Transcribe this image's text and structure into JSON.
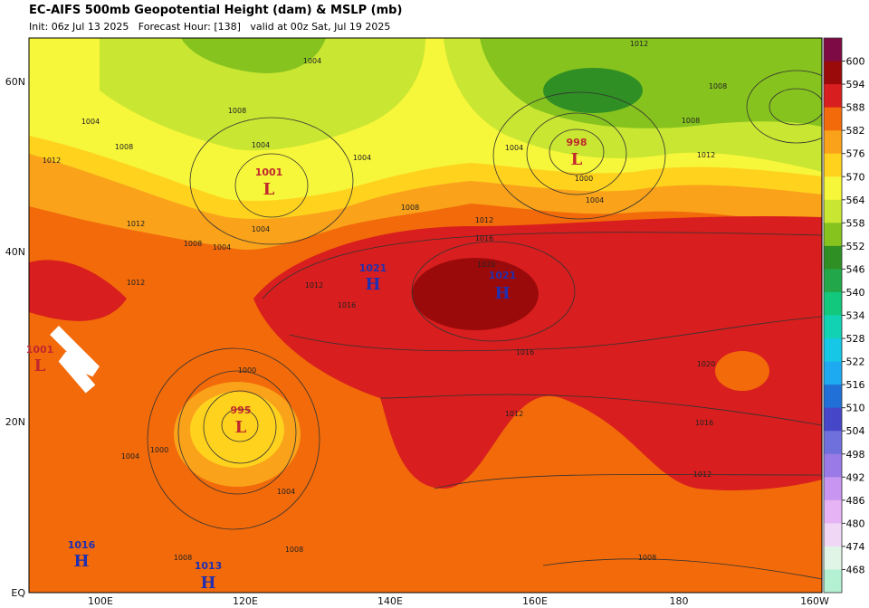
{
  "header": {
    "title": "EC-AIFS 500mb Geopotential Height (dam) & MSLP (mb)",
    "subtitle": "Init: 06z Jul 13 2025   Forecast Hour: [138]   valid at 00z Sat, Jul 19 2025"
  },
  "lat_labels": [
    "60N",
    "40N",
    "20N",
    "EQ"
  ],
  "lon_labels": [
    "100E",
    "120E",
    "140E",
    "160E",
    "180",
    "160W"
  ],
  "colorbar": {
    "levels": [
      600,
      594,
      588,
      582,
      576,
      570,
      564,
      558,
      552,
      546,
      540,
      534,
      528,
      522,
      516,
      510,
      504,
      498,
      492,
      486,
      480,
      474,
      468
    ],
    "colors": [
      "#7d0a45",
      "#9b0a0a",
      "#d81e1e",
      "#f26a0a",
      "#f9a21a",
      "#ffd21e",
      "#f6f63a",
      "#c8e632",
      "#86c31e",
      "#2f8f24",
      "#22a84a",
      "#12c87c",
      "#12d2b4",
      "#16c8e6",
      "#1eaaf0",
      "#2070d8",
      "#4646c8",
      "#7070dc",
      "#9a7ae6",
      "#c896f0",
      "#e6b4f5",
      "#f0d7f5",
      "#e0f5e6",
      "#b4f0d2"
    ]
  },
  "centers": [
    {
      "letter": "L",
      "value": "1001"
    },
    {
      "letter": "L",
      "value": "998"
    },
    {
      "letter": "L",
      "value": "995"
    },
    {
      "letter": "H",
      "value": "1021"
    },
    {
      "letter": "H",
      "value": "1021"
    },
    {
      "letter": "H",
      "value": "1016"
    },
    {
      "letter": "H",
      "value": "1013"
    },
    {
      "letter": "L",
      "value": "1001"
    }
  ],
  "contour_labels": [
    "1004",
    "1004",
    "1008",
    "1004",
    "1004",
    "1012",
    "1008",
    "1012",
    "1008",
    "1004",
    "1004",
    "1008",
    "1012",
    "1016",
    "1020",
    "1012",
    "1016",
    "1016",
    "1020",
    "1012",
    "1016",
    "1012",
    "1000",
    "1004",
    "1012",
    "1008",
    "1008",
    "1012",
    "1004",
    "1000",
    "1000",
    "1004",
    "1004",
    "1008",
    "1008",
    "1008",
    "1012"
  ]
}
